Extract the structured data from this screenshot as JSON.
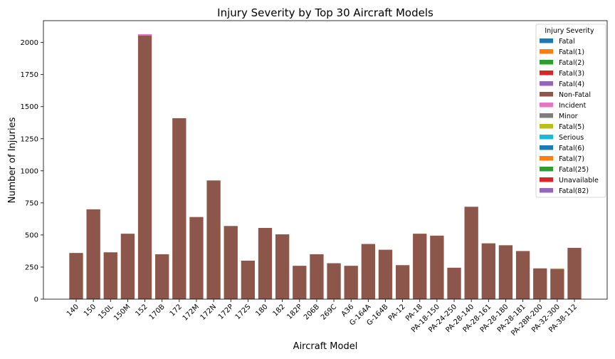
{
  "chart_data": {
    "type": "bar",
    "stacked": true,
    "title": "Injury Severity by Top 30 Aircraft Models",
    "xlabel": "Aircraft Model",
    "ylabel": "Number of Injuries",
    "ylim": [
      0,
      2170
    ],
    "yticks": [
      0,
      250,
      500,
      750,
      1000,
      1250,
      1500,
      1750,
      2000
    ],
    "grid": false,
    "legend_placement": "top-right",
    "legend_title": "Injury Severity",
    "categories": [
      "140",
      "150",
      "150L",
      "150M",
      "152",
      "170B",
      "172",
      "172M",
      "172N",
      "172P",
      "172S",
      "180",
      "182",
      "182P",
      "206B",
      "269C",
      "A36",
      "G-164A",
      "G-164B",
      "PA-12",
      "PA-18",
      "PA-18-150",
      "PA-24-250",
      "PA-28-140",
      "PA-28-161",
      "PA-28-180",
      "PA-28-181",
      "PA-28R-200",
      "PA-32-300",
      "PA-38-112"
    ],
    "series": [
      {
        "name": "Fatal",
        "color": "#1f77b4",
        "values": [
          0,
          0,
          0,
          0,
          0,
          0,
          0,
          0,
          0,
          0,
          0,
          0,
          0,
          0,
          0,
          0,
          0,
          0,
          0,
          0,
          0,
          0,
          0,
          0,
          0,
          0,
          0,
          0,
          0,
          0
        ]
      },
      {
        "name": "Fatal(1)",
        "color": "#ff7f0e",
        "values": [
          0,
          0,
          0,
          0,
          0,
          0,
          0,
          0,
          0,
          0,
          0,
          0,
          0,
          0,
          0,
          0,
          0,
          0,
          0,
          0,
          0,
          0,
          0,
          0,
          0,
          0,
          0,
          0,
          0,
          0
        ]
      },
      {
        "name": "Fatal(2)",
        "color": "#2ca02c",
        "values": [
          0,
          0,
          0,
          0,
          0,
          0,
          0,
          0,
          0,
          0,
          0,
          0,
          0,
          0,
          0,
          0,
          0,
          0,
          0,
          0,
          0,
          0,
          0,
          0,
          0,
          0,
          0,
          0,
          0,
          0
        ]
      },
      {
        "name": "Fatal(3)",
        "color": "#d62728",
        "values": [
          0,
          0,
          0,
          0,
          0,
          0,
          0,
          0,
          0,
          0,
          0,
          0,
          0,
          0,
          0,
          0,
          0,
          0,
          0,
          0,
          0,
          0,
          0,
          0,
          0,
          0,
          0,
          0,
          0,
          0
        ]
      },
      {
        "name": "Fatal(4)",
        "color": "#9467bd",
        "values": [
          0,
          0,
          0,
          0,
          0,
          0,
          0,
          0,
          0,
          0,
          0,
          0,
          0,
          0,
          0,
          0,
          0,
          0,
          0,
          0,
          0,
          0,
          0,
          0,
          0,
          0,
          0,
          0,
          0,
          0
        ]
      },
      {
        "name": "Non-Fatal",
        "color": "#8c564b",
        "values": [
          360,
          700,
          365,
          510,
          2055,
          350,
          1410,
          640,
          925,
          570,
          300,
          555,
          505,
          260,
          350,
          280,
          260,
          430,
          385,
          265,
          510,
          495,
          245,
          720,
          435,
          420,
          375,
          240,
          235,
          400
        ]
      },
      {
        "name": "Incident",
        "color": "#e377c2",
        "values": [
          0,
          0,
          0,
          0,
          10,
          0,
          0,
          0,
          0,
          0,
          0,
          0,
          0,
          0,
          0,
          0,
          0,
          0,
          0,
          0,
          0,
          0,
          0,
          0,
          0,
          0,
          0,
          0,
          0,
          0
        ]
      },
      {
        "name": "Minor",
        "color": "#7f7f7f",
        "values": [
          0,
          0,
          0,
          0,
          0,
          0,
          0,
          0,
          0,
          0,
          0,
          0,
          0,
          0,
          0,
          0,
          0,
          0,
          0,
          0,
          0,
          0,
          0,
          0,
          0,
          0,
          0,
          0,
          0,
          0
        ]
      },
      {
        "name": "Fatal(5)",
        "color": "#bcbd22",
        "values": [
          0,
          0,
          0,
          0,
          0,
          0,
          0,
          0,
          0,
          0,
          0,
          0,
          0,
          0,
          0,
          0,
          0,
          0,
          0,
          0,
          0,
          0,
          0,
          0,
          0,
          0,
          0,
          0,
          5,
          0
        ]
      },
      {
        "name": "Serious",
        "color": "#17becf",
        "values": [
          0,
          0,
          0,
          0,
          0,
          0,
          0,
          0,
          0,
          0,
          0,
          0,
          0,
          0,
          0,
          0,
          0,
          0,
          0,
          0,
          0,
          0,
          0,
          0,
          0,
          0,
          0,
          0,
          0,
          0
        ]
      },
      {
        "name": "Fatal(6)",
        "color": "#1f77b4",
        "values": [
          0,
          0,
          0,
          0,
          0,
          0,
          0,
          0,
          0,
          0,
          0,
          0,
          0,
          0,
          0,
          0,
          0,
          0,
          0,
          0,
          0,
          0,
          0,
          0,
          0,
          0,
          0,
          0,
          0,
          0
        ]
      },
      {
        "name": "Fatal(7)",
        "color": "#ff7f0e",
        "values": [
          0,
          0,
          0,
          0,
          0,
          0,
          0,
          0,
          0,
          0,
          0,
          0,
          0,
          0,
          0,
          0,
          0,
          0,
          0,
          0,
          0,
          0,
          0,
          0,
          0,
          0,
          0,
          0,
          0,
          0
        ]
      },
      {
        "name": "Fatal(25)",
        "color": "#2ca02c",
        "values": [
          0,
          0,
          0,
          0,
          0,
          0,
          0,
          0,
          0,
          0,
          0,
          0,
          0,
          0,
          0,
          0,
          0,
          0,
          0,
          0,
          0,
          0,
          0,
          0,
          0,
          0,
          0,
          0,
          0,
          0
        ]
      },
      {
        "name": "Unavailable",
        "color": "#d62728",
        "values": [
          0,
          0,
          0,
          0,
          0,
          0,
          0,
          0,
          0,
          0,
          0,
          0,
          0,
          0,
          0,
          0,
          0,
          0,
          0,
          0,
          0,
          0,
          0,
          0,
          0,
          0,
          0,
          0,
          0,
          0
        ]
      },
      {
        "name": "Fatal(82)",
        "color": "#9467bd",
        "values": [
          0,
          0,
          0,
          0,
          0,
          0,
          0,
          0,
          0,
          0,
          0,
          0,
          0,
          0,
          0,
          0,
          0,
          0,
          0,
          0,
          0,
          0,
          0,
          0,
          0,
          0,
          0,
          0,
          0,
          0
        ]
      }
    ]
  }
}
